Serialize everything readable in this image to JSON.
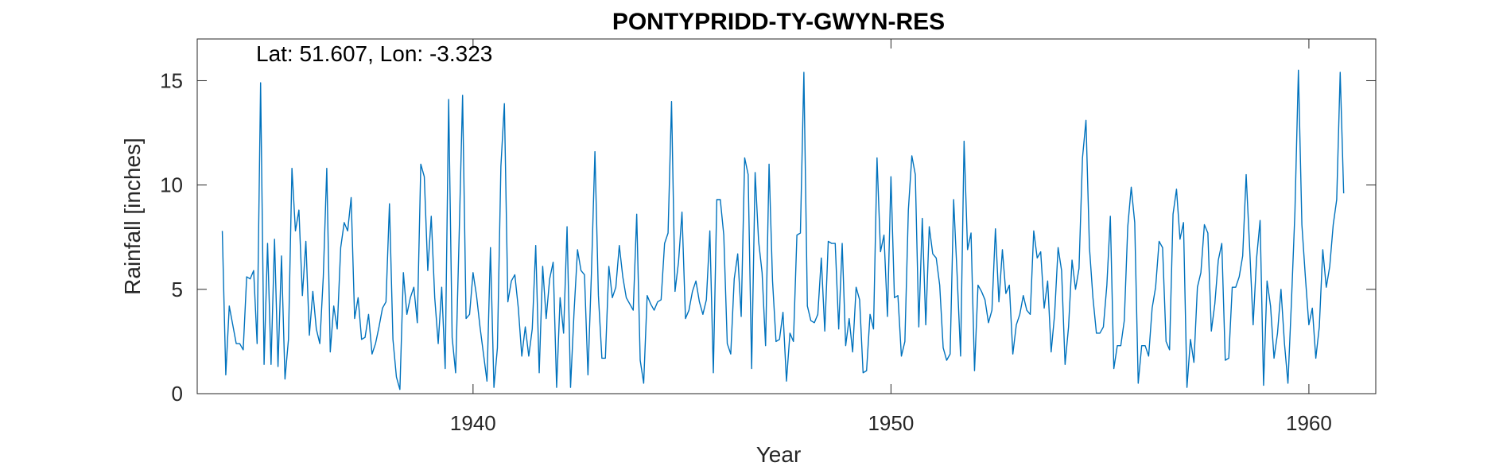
{
  "chart_data": {
    "type": "line",
    "title": "PONTYPRIDD-TY-GWYN-RES",
    "annotation": "Lat: 51.607, Lon: -3.323",
    "xlabel": "Year",
    "ylabel": "Rainfall [inches]",
    "xlim": [
      1933.4,
      1961.6
    ],
    "ylim": [
      0,
      17
    ],
    "xticks": [
      1940,
      1950,
      1960
    ],
    "yticks": [
      0,
      5,
      10,
      15
    ],
    "xtick_labels": [
      "1940",
      "1950",
      "1960"
    ],
    "ytick_labels": [
      "0",
      "5",
      "10",
      "15"
    ],
    "grid": false,
    "line_color": "#0072BD",
    "series": [
      {
        "x_start": 1934.0,
        "x_step": 0.08333,
        "values": [
          7.8,
          0.9,
          4.2,
          3.3,
          2.4,
          2.4,
          2.1,
          5.6,
          5.5,
          5.9,
          2.4,
          14.9,
          1.4,
          7.2,
          1.4,
          7.4,
          1.3,
          6.6,
          0.7,
          2.6,
          10.8,
          7.8,
          8.8,
          4.7,
          7.3,
          2.8,
          4.9,
          3.1,
          2.4,
          5.6,
          10.8,
          2.0,
          4.2,
          3.1,
          7.0,
          8.2,
          7.8,
          9.4,
          3.6,
          4.6,
          2.6,
          2.7,
          3.8,
          1.9,
          2.4,
          3.2,
          4.1,
          4.4,
          9.1,
          2.6,
          0.8,
          0.2,
          5.8,
          3.8,
          4.6,
          5.1,
          3.4,
          11.0,
          10.4,
          5.9,
          8.5,
          4.6,
          2.4,
          5.1,
          1.2,
          14.1,
          2.7,
          1.0,
          7.5,
          14.3,
          3.6,
          3.8,
          5.8,
          4.7,
          3.2,
          1.9,
          0.6,
          7.0,
          0.3,
          2.2,
          10.9,
          13.9,
          4.4,
          5.4,
          5.7,
          4.1,
          1.8,
          3.2,
          1.8,
          3.1,
          7.1,
          1.0,
          6.1,
          3.6,
          5.5,
          6.3,
          0.3,
          4.6,
          2.9,
          8.0,
          0.3,
          3.9,
          6.9,
          5.9,
          5.7,
          0.9,
          5.8,
          11.6,
          4.7,
          1.7,
          1.7,
          6.1,
          4.6,
          5.1,
          7.1,
          5.6,
          4.6,
          4.3,
          4.0,
          8.6,
          1.6,
          0.5,
          4.7,
          4.3,
          4.0,
          4.4,
          4.5,
          7.2,
          7.7,
          14.0,
          4.9,
          6.3,
          8.7,
          3.6,
          4.0,
          4.9,
          5.4,
          4.4,
          3.8,
          4.5,
          7.8,
          1.0,
          9.3,
          9.3,
          7.6,
          2.4,
          1.9,
          5.5,
          6.7,
          3.7,
          11.3,
          10.5,
          1.2,
          10.6,
          7.3,
          5.8,
          2.3,
          11.0,
          5.4,
          2.5,
          2.6,
          3.9,
          0.6,
          2.9,
          2.5,
          7.6,
          7.7,
          15.4,
          4.2,
          3.5,
          3.4,
          3.8,
          6.5,
          3.0,
          7.3,
          7.2,
          7.2,
          3.1,
          7.2,
          2.3,
          3.6,
          2.0,
          5.1,
          4.5,
          1.0,
          1.1,
          3.8,
          3.1,
          11.3,
          6.8,
          7.6,
          3.7,
          10.4,
          4.6,
          4.7,
          1.8,
          2.5,
          8.8,
          11.4,
          10.5,
          3.2,
          8.4,
          3.3,
          8.0,
          6.7,
          6.5,
          5.2,
          2.2,
          1.6,
          1.9,
          9.3,
          5.7,
          1.8,
          12.1,
          6.9,
          7.7,
          1.1,
          5.2,
          4.9,
          4.5,
          3.4,
          4.0,
          7.9,
          4.4,
          6.9,
          4.8,
          5.2,
          1.9,
          3.3,
          3.8,
          4.7,
          4.0,
          3.8,
          7.8,
          6.5,
          6.8,
          4.1,
          5.4,
          2.0,
          3.8,
          7.0,
          5.9,
          1.4,
          3.2,
          6.4,
          5.0,
          6.0,
          11.3,
          13.1,
          7.0,
          4.6,
          2.9,
          2.9,
          3.2,
          5.2,
          8.5,
          1.2,
          2.3,
          2.3,
          3.5,
          8.0,
          9.9,
          8.2,
          0.5,
          2.3,
          2.3,
          1.8,
          4.1,
          5.1,
          7.3,
          7.0,
          2.5,
          2.1,
          8.6,
          9.8,
          7.4,
          8.2,
          0.3,
          2.6,
          1.5,
          5.1,
          5.8,
          8.1,
          7.7,
          3.0,
          4.3,
          6.4,
          7.2,
          1.6,
          1.7,
          5.1,
          5.1,
          5.6,
          6.6,
          10.5,
          7.0,
          3.3,
          6.5,
          8.3,
          0.4,
          5.4,
          4.2,
          1.7,
          2.9,
          5.0,
          2.4,
          0.5,
          4.4,
          8.7,
          15.5,
          8.1,
          5.6,
          3.3,
          4.1,
          1.7,
          3.2,
          6.9,
          5.1,
          6.1,
          8.1,
          9.3,
          15.4,
          9.6
        ]
      }
    ]
  }
}
